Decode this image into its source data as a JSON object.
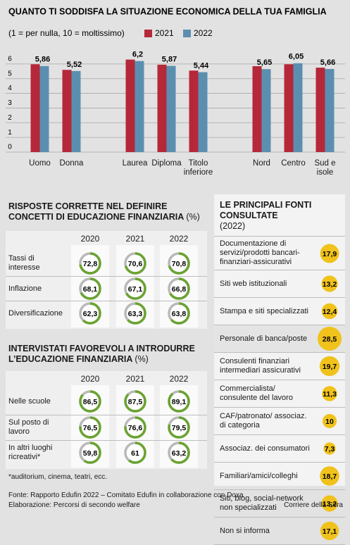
{
  "chart_data": {
    "type": "bar",
    "title": "QUANTO TI SODDISFA LA SITUAZIONE ECONOMICA DELLA TUA FAMIGLIA",
    "subtitle": "(1 = per nulla, 10 = moltissimo)",
    "categories": [
      "Uomo",
      "Donna",
      null,
      "Laurea",
      "Diploma",
      "Titolo inferiore",
      null,
      "Nord",
      "Centro",
      "Sud e isole"
    ],
    "series": [
      {
        "name": "2021",
        "color": "#b52839",
        "values": [
          5.98,
          5.6,
          null,
          6.3,
          5.95,
          5.55,
          null,
          5.85,
          5.98,
          5.75
        ]
      },
      {
        "name": "2022",
        "color": "#5b8fb0",
        "values": [
          5.86,
          5.52,
          null,
          6.2,
          5.87,
          5.44,
          null,
          5.65,
          6.05,
          5.66
        ],
        "value_labels": [
          "5,86",
          "5,52",
          null,
          "6,2",
          "5,87",
          "5,44",
          null,
          "5,65",
          "6,05",
          "5,66"
        ]
      }
    ],
    "ylim": [
      0,
      7
    ],
    "yticks": [
      0,
      1,
      2,
      3,
      4,
      5,
      6
    ],
    "grid": true
  },
  "quiz": {
    "title": "RISPOSTE CORRETTE NEL DEFINIRE CONCETTI DI EDUCAZIONE FINANZIARIA",
    "unit": "(%)",
    "columns": [
      "2020",
      "2021",
      "2022"
    ],
    "rows": [
      {
        "label": "Tassi di interesse",
        "cells": [
          {
            "value": 72.8,
            "label": "72,8"
          },
          {
            "value": 70.6,
            "label": "70,6"
          },
          {
            "value": 70.8,
            "label": "70,8"
          }
        ]
      },
      {
        "label": "Inflazione",
        "cells": [
          {
            "value": 68.1,
            "label": "68,1"
          },
          {
            "value": 67.1,
            "label": "67,1"
          },
          {
            "value": 66.8,
            "label": "66,8"
          }
        ]
      },
      {
        "label": "Diversificazione",
        "cells": [
          {
            "value": 62.3,
            "label": "62,3"
          },
          {
            "value": 63.3,
            "label": "63,3"
          },
          {
            "value": 63.8,
            "label": "63,8"
          }
        ]
      }
    ]
  },
  "attitude": {
    "title": "INTERVISTATI FAVOREVOLI A INTRODURRE L’EDUCAZIONE FINANZIARIA",
    "unit": "(%)",
    "columns": [
      "2020",
      "2021",
      "2022"
    ],
    "rows": [
      {
        "label": "Nelle scuole",
        "cells": [
          {
            "value": 86.5,
            "label": "86,5"
          },
          {
            "value": 87.5,
            "label": "87,5"
          },
          {
            "value": 89.1,
            "label": "89,1"
          }
        ]
      },
      {
        "label": "Sul posto di lavoro",
        "cells": [
          {
            "value": 76.5,
            "label": "76,5"
          },
          {
            "value": 76.6,
            "label": "76,6"
          },
          {
            "value": 79.5,
            "label": "79,5"
          }
        ]
      },
      {
        "label": "In altri luoghi ricreativi*",
        "cells": [
          {
            "value": 59.8,
            "label": "59,8"
          },
          {
            "value": 61,
            "label": "61"
          },
          {
            "value": 63.2,
            "label": "63,2"
          }
        ]
      }
    ],
    "note": "*auditorium, cinema, teatri, ecc."
  },
  "sources": {
    "title": "LE PRINCIPALI FONTI CONSULTATE",
    "unit": "(2022)",
    "rows": [
      {
        "label": "Documentazione di servizi/prodotti bancari-finanziari-assicurativi",
        "value": 17.9,
        "value_label": "17,9"
      },
      {
        "label": "Siti web istituzionali",
        "value": 13.2,
        "value_label": "13,2"
      },
      {
        "label": "Stampa e siti specializzati",
        "value": 12.4,
        "value_label": "12,4"
      },
      {
        "label": "Personale di banca/poste",
        "value": 28.5,
        "value_label": "28,5"
      },
      {
        "label": "Consulenti finanziari intermediari assicurativi",
        "value": 19.7,
        "value_label": "19,7"
      },
      {
        "label": "Commercialista/ consulente del lavoro",
        "value": 11.3,
        "value_label": "11,3"
      },
      {
        "label": "CAF/patronato/ associaz. di categoria",
        "value": 10,
        "value_label": "10"
      },
      {
        "label": "Associaz. dei consumatori",
        "value": 7.3,
        "value_label": "7,3"
      },
      {
        "label": "Familiari/amici/colleghi",
        "value": 18.7,
        "value_label": "18,7"
      },
      {
        "label": "Siti, blog, social-network non specializzati",
        "value": 13.2,
        "value_label": "13,2"
      },
      {
        "label": "Non si informa",
        "value": 17.1,
        "value_label": "17,1"
      }
    ]
  },
  "footer": {
    "source": "Fonte: Rapporto Edufin 2022 – Comitato Edufin in collaborazione con Doxa",
    "elaboration": "Elaborazione: Percorsi di secondo welfare",
    "publisher": "Corriere della Sera"
  }
}
